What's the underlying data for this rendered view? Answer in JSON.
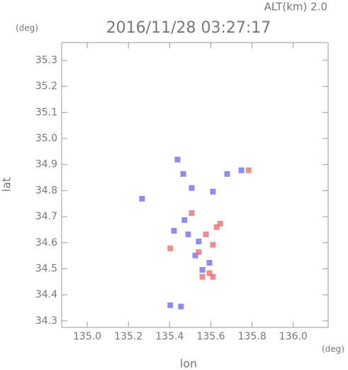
{
  "chart_data": {
    "type": "scatter",
    "title": "2016/11/28 03:27:17",
    "subtitle": "ALT(km) 2.0",
    "y_unit": "(deg)",
    "x_unit": "(deg)",
    "xlabel": "lon",
    "ylabel": "lat",
    "xlim": [
      134.876,
      136.169
    ],
    "ylim": [
      34.275,
      35.368
    ],
    "xticks": [
      {
        "value": 135.0,
        "label": "135.0"
      },
      135.2,
      135.4,
      135.6,
      135.8,
      {
        "value": 136.0,
        "label": "136.0"
      }
    ],
    "yticks": [
      34.3,
      34.4,
      34.5,
      34.6,
      34.7,
      34.8,
      34.9,
      {
        "value": 35.0,
        "label": "35.0"
      },
      35.1,
      35.2,
      35.3
    ],
    "series": [
      {
        "color": "#7070e8",
        "x": [
          135.438,
          135.466,
          135.507,
          135.61,
          135.679,
          135.748,
          135.472,
          135.49,
          135.541,
          135.524,
          135.559,
          135.593,
          135.403,
          135.455,
          135.266,
          135.421
        ],
        "values": [
          34.919,
          34.864,
          34.81,
          34.796,
          34.864,
          34.878,
          34.687,
          34.632,
          34.605,
          34.551,
          34.496,
          34.523,
          34.36,
          34.355,
          34.769,
          34.646
        ]
      },
      {
        "color": "#e87070",
        "x": [
          135.507,
          135.628,
          135.576,
          135.541,
          135.61,
          135.559,
          135.593,
          135.783,
          135.403,
          135.61,
          135.645
        ],
        "values": [
          34.714,
          34.66,
          34.632,
          34.564,
          34.592,
          34.469,
          34.483,
          34.878,
          34.578,
          34.469,
          34.673
        ]
      }
    ]
  }
}
